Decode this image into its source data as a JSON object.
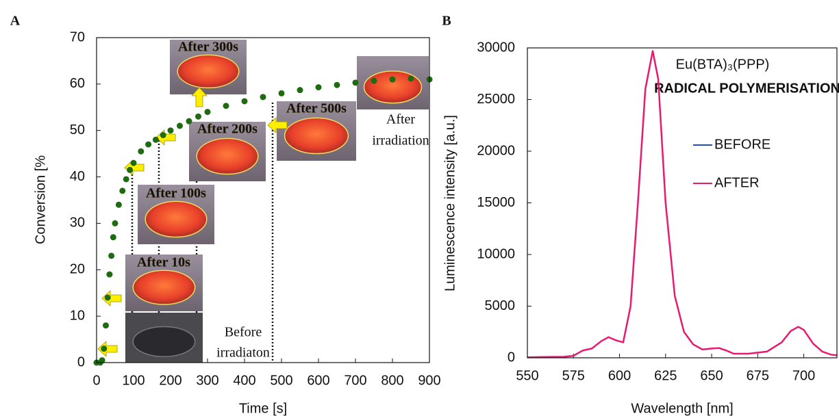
{
  "chart_data": [
    {
      "type": "scatter",
      "panel": "A",
      "x_label": "Time [s]",
      "y_label": "Conversion [%",
      "color": "#1e6b12",
      "xlim": [
        0,
        900
      ],
      "xticks": [
        0,
        100,
        200,
        300,
        400,
        500,
        600,
        700,
        800,
        900
      ],
      "ylim": [
        0,
        70
      ],
      "yticks": [
        0,
        10,
        20,
        30,
        40,
        50,
        60,
        70
      ],
      "x": [
        0,
        10,
        15,
        20,
        25,
        30,
        35,
        40,
        45,
        50,
        60,
        70,
        80,
        90,
        100,
        120,
        140,
        160,
        180,
        200,
        225,
        250,
        275,
        300,
        350,
        400,
        450,
        500,
        550,
        600,
        650,
        700,
        750,
        800,
        850,
        900
      ],
      "values": [
        0,
        0,
        0.5,
        3,
        8,
        14,
        19,
        23,
        27,
        30,
        34,
        37,
        39.5,
        41.5,
        43,
        45.5,
        47,
        48,
        49,
        50,
        51,
        52,
        53,
        54,
        55.3,
        56.3,
        57.2,
        58,
        58.7,
        59.3,
        59.8,
        60.3,
        60.7,
        61,
        61.2,
        61
      ],
      "annotations": [
        "After 300s",
        "After 200s",
        "After 100s",
        "After 10s",
        "After 500s",
        "After",
        "irradiation",
        "Before",
        "irradiaton"
      ]
    },
    {
      "type": "line",
      "panel": "B",
      "title": "Eu(BTA)₃(PPP)",
      "subtitle": "RADICAL POLYMERISATION",
      "x_label": "Wavelength [nm]",
      "y_label": "Luminescence intensity [a.u.]",
      "xlim": [
        550,
        718
      ],
      "xticks": [
        550,
        575,
        600,
        625,
        650,
        675,
        700
      ],
      "ylim": [
        0,
        30000
      ],
      "yticks": [
        0,
        5000,
        10000,
        15000,
        20000,
        25000,
        30000
      ],
      "x": [
        550,
        560,
        570,
        575,
        580,
        585,
        590,
        594,
        598,
        602,
        606,
        610,
        614,
        618,
        621,
        625,
        630,
        635,
        640,
        645,
        650,
        654,
        658,
        662,
        670,
        680,
        688,
        693,
        697,
        700,
        705,
        710,
        715,
        718
      ],
      "series": [
        {
          "name": "BEFORE",
          "color": "#1f4fc4",
          "values": [
            null,
            null,
            null,
            null,
            null,
            null,
            null,
            null,
            null,
            null,
            null,
            null,
            null,
            null,
            null,
            null,
            null,
            null,
            null,
            null,
            null,
            null,
            null,
            null,
            null,
            null,
            null,
            null,
            null,
            null,
            null,
            null,
            null,
            null
          ]
        },
        {
          "name": "AFTER",
          "color": "#e8196e",
          "values": [
            50,
            80,
            100,
            200,
            700,
            900,
            1600,
            2000,
            1700,
            1500,
            5000,
            15000,
            26000,
            29700,
            27000,
            15000,
            6000,
            2500,
            1300,
            800,
            900,
            950,
            700,
            400,
            400,
            600,
            1500,
            2600,
            3000,
            2700,
            1400,
            600,
            300,
            250
          ]
        }
      ]
    }
  ]
}
